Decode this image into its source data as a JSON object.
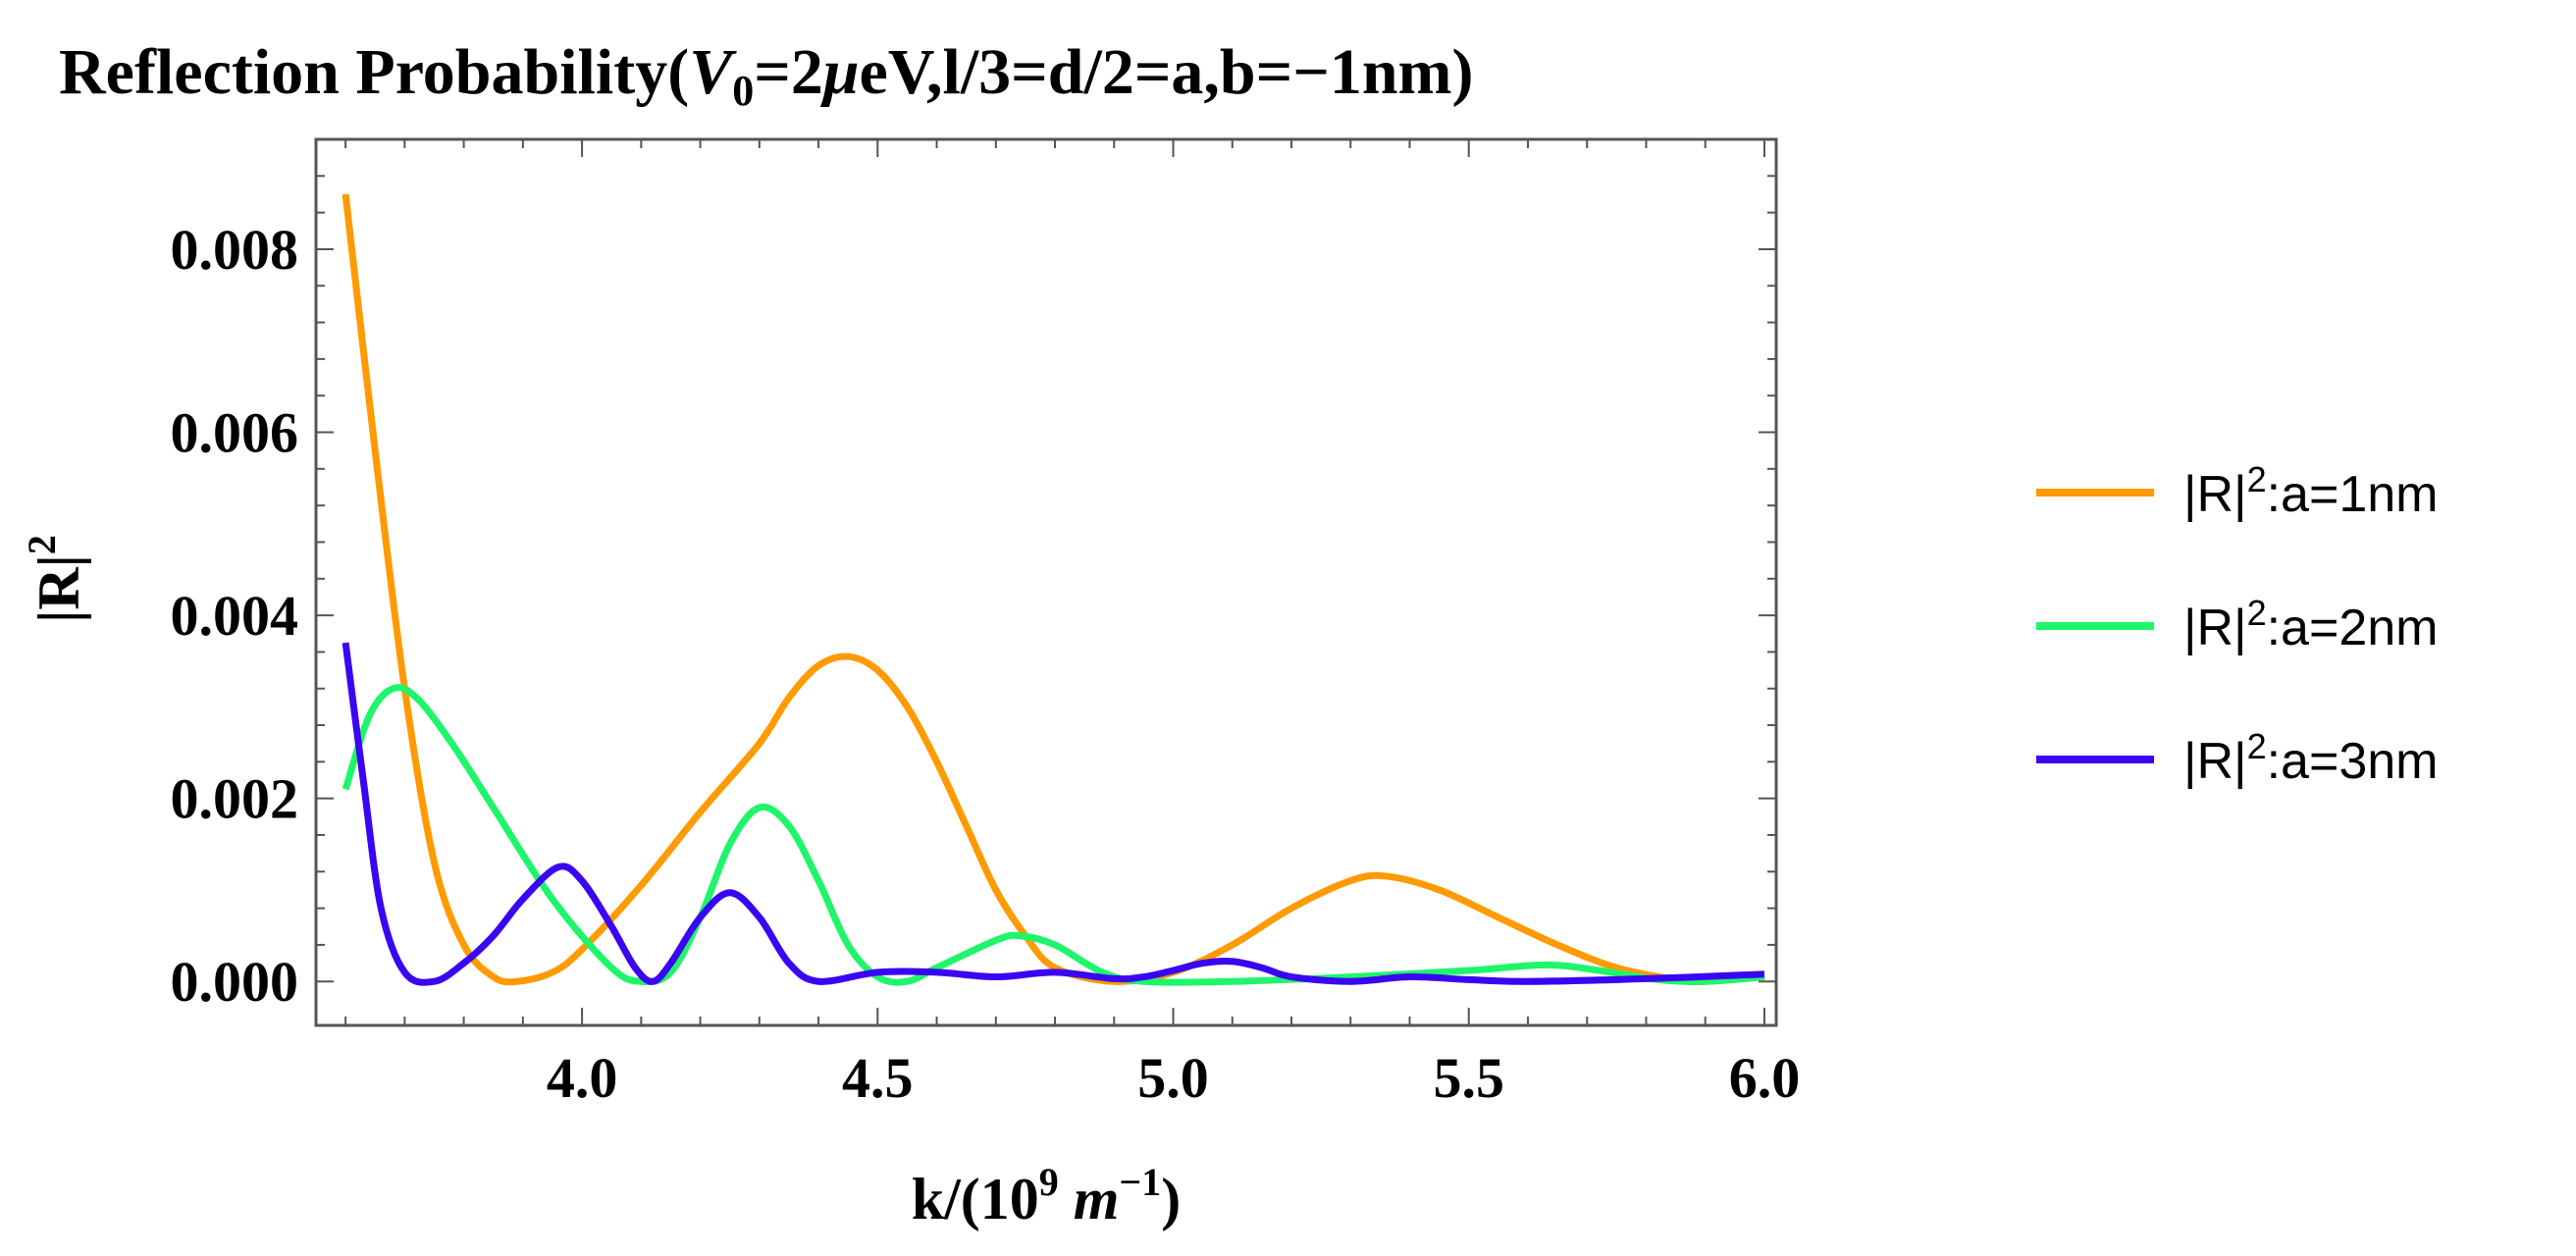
{
  "chart_data": {
    "type": "line",
    "title_parts": {
      "prefix": "Reflection Probability(",
      "var": "V",
      "sub": "0",
      "mid": "=2",
      "mu": "μ",
      "suffix": "eV,l/3=d/2=a,b=−1nm)"
    },
    "xlabel_parts": {
      "prefix": "k/(10",
      "sup": "9",
      "m": " m",
      "sup2": "−1",
      "suffix": ")"
    },
    "ylabel_parts": {
      "base": "|R|",
      "sup": "2"
    },
    "xlim": [
      3.55,
      6.02
    ],
    "ylim": [
      -0.00048,
      0.0092
    ],
    "x_ticks": [
      {
        "value": 4.0,
        "label": "4.0"
      },
      {
        "value": 4.5,
        "label": "4.5"
      },
      {
        "value": 5.0,
        "label": "5.0"
      },
      {
        "value": 5.5,
        "label": "5.5"
      },
      {
        "value": 6.0,
        "label": "6.0"
      }
    ],
    "y_ticks": [
      {
        "value": 0.0,
        "label": "0.000"
      },
      {
        "value": 0.002,
        "label": "0.002"
      },
      {
        "value": 0.004,
        "label": "0.004"
      },
      {
        "value": 0.006,
        "label": "0.006"
      },
      {
        "value": 0.008,
        "label": "0.008"
      }
    ],
    "legend_position": "right",
    "series": [
      {
        "name": "|R|²:a=1nm",
        "label_base": "|R|",
        "label_sup": "2",
        "label_suffix": ":a=1nm",
        "color": "#FF9A00",
        "points": [
          [
            3.6,
            0.0086
          ],
          [
            3.65,
            0.0058
          ],
          [
            3.7,
            0.0032
          ],
          [
            3.75,
            0.0013
          ],
          [
            3.8,
            0.0004
          ],
          [
            3.85,
            5e-05
          ],
          [
            3.89,
            0.0
          ],
          [
            3.95,
            0.0001
          ],
          [
            4.0,
            0.00035
          ],
          [
            4.1,
            0.00105
          ],
          [
            4.2,
            0.00185
          ],
          [
            4.3,
            0.0026
          ],
          [
            4.35,
            0.0031
          ],
          [
            4.4,
            0.00345
          ],
          [
            4.45,
            0.00355
          ],
          [
            4.5,
            0.0034
          ],
          [
            4.55,
            0.003
          ],
          [
            4.6,
            0.0024
          ],
          [
            4.65,
            0.0017
          ],
          [
            4.7,
            0.001
          ],
          [
            4.75,
            0.0005
          ],
          [
            4.8,
            0.00015
          ],
          [
            4.9,
            0.0
          ],
          [
            5.0,
            0.0001
          ],
          [
            5.1,
            0.0004
          ],
          [
            5.2,
            0.0008
          ],
          [
            5.3,
            0.0011
          ],
          [
            5.36,
            0.00115
          ],
          [
            5.45,
            0.001
          ],
          [
            5.55,
            0.0007
          ],
          [
            5.65,
            0.0004
          ],
          [
            5.75,
            0.00015
          ],
          [
            5.85,
            2e-05
          ],
          [
            5.9,
            0.0
          ],
          [
            6.0,
            5e-05
          ]
        ]
      },
      {
        "name": "|R|²:a=2nm",
        "label_base": "|R|",
        "label_sup": "2",
        "label_suffix": ":a=2nm",
        "color": "#1FF56A",
        "points": [
          [
            3.6,
            0.0021
          ],
          [
            3.64,
            0.0029
          ],
          [
            3.68,
            0.0032
          ],
          [
            3.72,
            0.0031
          ],
          [
            3.78,
            0.0026
          ],
          [
            3.85,
            0.0019
          ],
          [
            3.95,
            0.0009
          ],
          [
            4.05,
            0.00015
          ],
          [
            4.1,
            0.0
          ],
          [
            4.15,
            0.0001
          ],
          [
            4.2,
            0.0007
          ],
          [
            4.25,
            0.0015
          ],
          [
            4.3,
            0.0019
          ],
          [
            4.35,
            0.0017
          ],
          [
            4.4,
            0.0011
          ],
          [
            4.45,
            0.0004
          ],
          [
            4.5,
            5e-05
          ],
          [
            4.55,
            0.0
          ],
          [
            4.6,
            0.00015
          ],
          [
            4.7,
            0.00045
          ],
          [
            4.74,
            0.0005
          ],
          [
            4.8,
            0.0004
          ],
          [
            4.88,
            0.0001
          ],
          [
            4.95,
            0.0
          ],
          [
            5.1,
            0.0
          ],
          [
            5.3,
            5e-05
          ],
          [
            5.5,
            0.00012
          ],
          [
            5.63,
            0.00018
          ],
          [
            5.72,
            0.00012
          ],
          [
            5.82,
            2e-05
          ],
          [
            5.9,
            0.0
          ],
          [
            6.0,
            5e-05
          ]
        ]
      },
      {
        "name": "|R|²:a=3nm",
        "label_base": "|R|",
        "label_sup": "2",
        "label_suffix": ":a=3nm",
        "color": "#3A05F2",
        "points": [
          [
            3.6,
            0.0037
          ],
          [
            3.63,
            0.0022
          ],
          [
            3.66,
            0.0008
          ],
          [
            3.7,
            0.0001
          ],
          [
            3.75,
            0.0
          ],
          [
            3.8,
            0.0002
          ],
          [
            3.85,
            0.0005
          ],
          [
            3.9,
            0.0009
          ],
          [
            3.96,
            0.00125
          ],
          [
            4.0,
            0.0011
          ],
          [
            4.05,
            0.0006
          ],
          [
            4.09,
            0.00015
          ],
          [
            4.12,
            0.0
          ],
          [
            4.15,
            0.0002
          ],
          [
            4.2,
            0.0007
          ],
          [
            4.25,
            0.00097
          ],
          [
            4.3,
            0.0007
          ],
          [
            4.35,
            0.0002
          ],
          [
            4.4,
            0.0
          ],
          [
            4.5,
            0.0001
          ],
          [
            4.6,
            0.0001
          ],
          [
            4.7,
            5e-05
          ],
          [
            4.8,
            0.0001
          ],
          [
            4.9,
            3e-05
          ],
          [
            4.95,
            5e-05
          ],
          [
            5.0,
            0.00012
          ],
          [
            5.05,
            0.0002
          ],
          [
            5.1,
            0.00022
          ],
          [
            5.15,
            0.00015
          ],
          [
            5.2,
            5e-05
          ],
          [
            5.3,
            0.0
          ],
          [
            5.4,
            5e-05
          ],
          [
            5.5,
            2e-05
          ],
          [
            5.6,
            0.0
          ],
          [
            5.8,
            3e-05
          ],
          [
            6.0,
            8e-05
          ]
        ]
      }
    ]
  }
}
